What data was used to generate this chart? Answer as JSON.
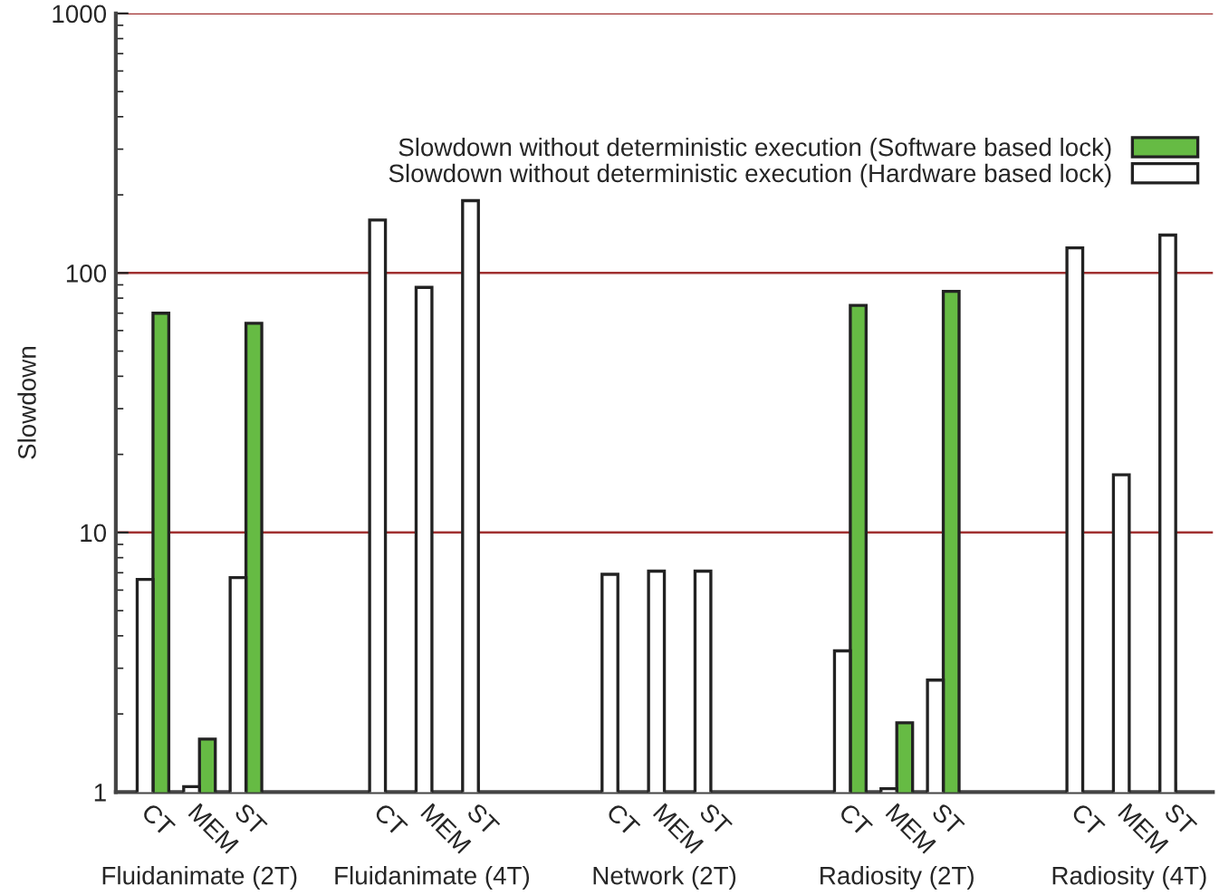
{
  "chart_data": {
    "type": "bar",
    "ylabel": "Slowdown",
    "categories": [
      "CT",
      "MEM",
      "ST",
      null,
      null,
      "CT",
      "MEM",
      "ST",
      null,
      null,
      "CT",
      "MEM",
      "ST",
      null,
      null,
      "CT",
      "MEM",
      "ST",
      null,
      null,
      "CT",
      "MEM",
      "ST"
    ],
    "series": [
      {
        "name": "Slowdown without deterministic execution (Software based lock)",
        "color": "#66bb44",
        "values": [
          70,
          1.6,
          64,
          null,
          null,
          null,
          null,
          null,
          null,
          null,
          null,
          null,
          null,
          null,
          null,
          75,
          1.85,
          85,
          null,
          null,
          null,
          null,
          null
        ]
      },
      {
        "name": "Slowdown without deterministic execution (Hardware based lock)",
        "color": "#ffffff",
        "values": [
          6.6,
          1.05,
          6.7,
          null,
          null,
          160,
          88,
          190,
          null,
          null,
          6.9,
          7.1,
          7.1,
          null,
          null,
          3.5,
          1.03,
          2.7,
          null,
          null,
          125,
          16.7,
          140
        ]
      }
    ],
    "annotations": [
      "Fluidanimate (2T)",
      "Fluidanimate (4T)",
      "Network (2T)",
      "Radiosity (2T)",
      "Radiosity (4T)"
    ],
    "log": true,
    "ylim": [
      1,
      1000
    ],
    "yticks": [
      1,
      10,
      100,
      1000
    ],
    "grid": "y",
    "legend": "top right"
  }
}
